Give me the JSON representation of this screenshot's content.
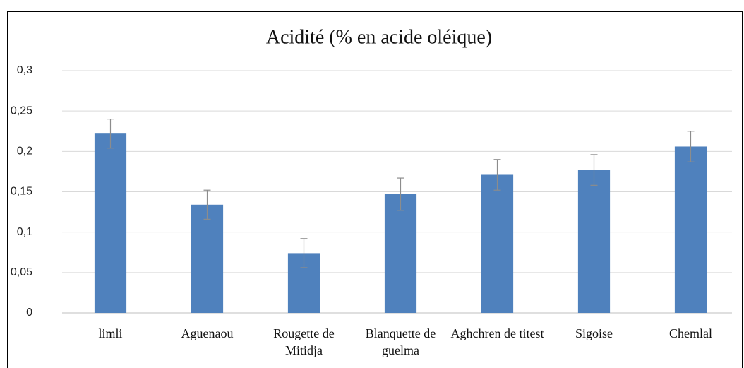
{
  "chart_data": {
    "type": "bar",
    "title": "Acidité (% en acide oléique)",
    "categories": [
      "limli",
      "Aguenaou",
      "Rougette de Mitidja",
      "Blanquette de guelma",
      "Aghchren de titest",
      "Sigoise",
      "Chemlal"
    ],
    "values": [
      0.222,
      0.134,
      0.074,
      0.147,
      0.171,
      0.177,
      0.206
    ],
    "errors": [
      0.018,
      0.018,
      0.018,
      0.02,
      0.019,
      0.019,
      0.019
    ],
    "color": "#4f81bd",
    "error_color": "#8c8c8c",
    "ylim": [
      0,
      0.3
    ],
    "yticks": [
      0,
      {
        "value": 0.05,
        "label": "0,05"
      },
      {
        "value": 0.1,
        "label": "0,1"
      },
      {
        "value": 0.15,
        "label": "0,15"
      },
      {
        "value": 0.2,
        "label": "0,2"
      },
      {
        "value": 0.25,
        "label": "0,25"
      },
      {
        "value": 0.3,
        "label": "0,3"
      }
    ],
    "grid": true
  }
}
